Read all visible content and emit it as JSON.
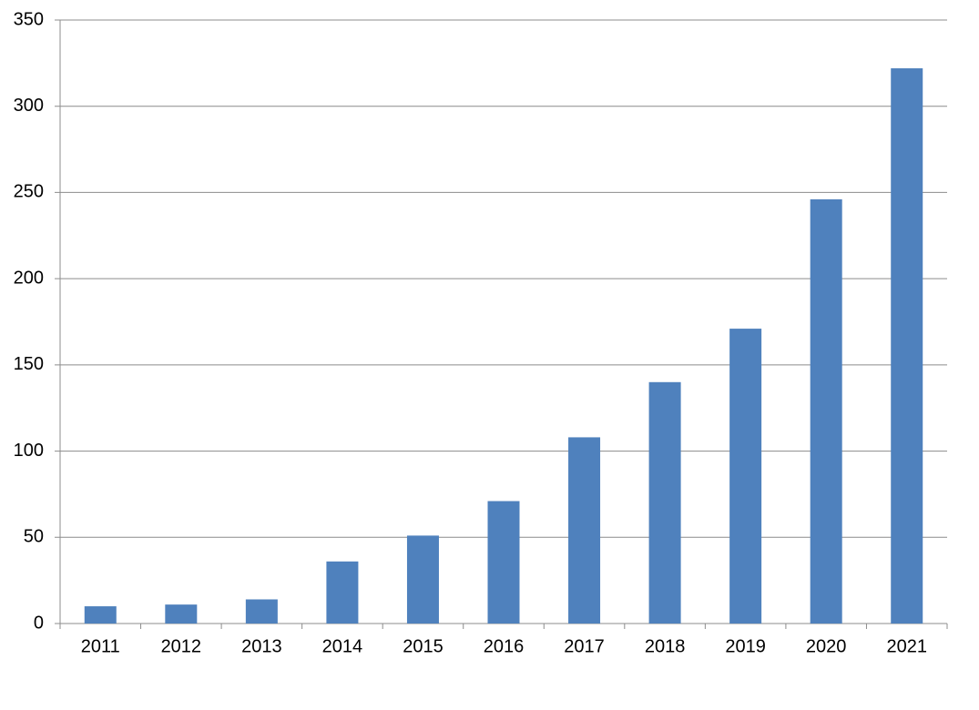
{
  "chart_data": {
    "type": "bar",
    "categories": [
      "2011",
      "2012",
      "2013",
      "2014",
      "2015",
      "2016",
      "2017",
      "2018",
      "2019",
      "2020",
      "2021"
    ],
    "values": [
      10,
      11,
      14,
      36,
      51,
      71,
      108,
      140,
      171,
      246,
      322
    ],
    "color": "#4f81bd",
    "ylim": [
      0,
      350
    ],
    "yticks": [
      0,
      50,
      100,
      150,
      200,
      250,
      300,
      350
    ],
    "grid": true
  }
}
